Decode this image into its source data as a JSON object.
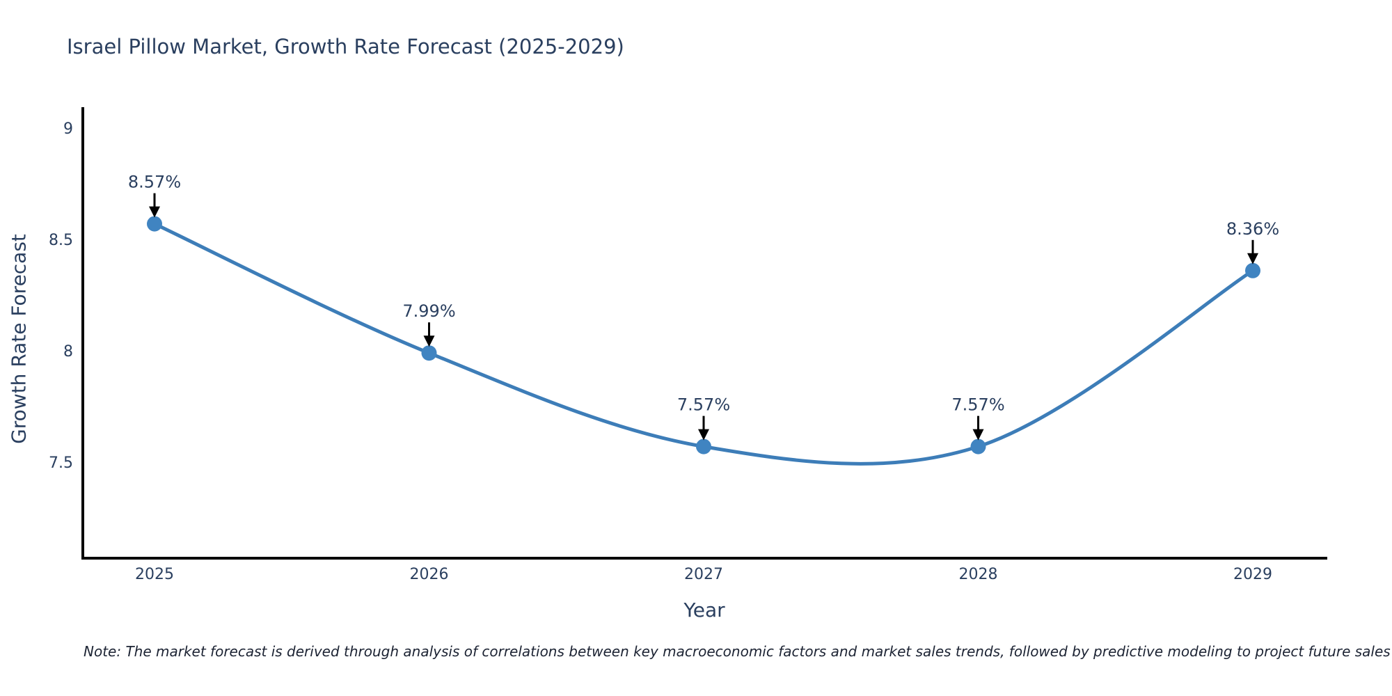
{
  "note": "Note: The market forecast is derived through analysis of correlations between key macroeconomic factors and market sales trends, followed by predictive modeling to project future sales",
  "chart_data": {
    "type": "line",
    "title": "Israel Pillow Market, Growth Rate Forecast (2025-2029)",
    "xlabel": "Year",
    "ylabel": "Growth Rate Forecast",
    "categories": [
      "2025",
      "2026",
      "2027",
      "2028",
      "2029"
    ],
    "series": [
      {
        "name": "Growth Rate Forecast",
        "values": [
          8.57,
          7.99,
          7.57,
          7.57,
          8.36
        ]
      }
    ],
    "point_labels": [
      "8.57%",
      "7.99%",
      "7.57%",
      "7.57%",
      "8.36%"
    ],
    "line_shape": "spline",
    "markers": true,
    "annotations_arrows": true,
    "grid": false,
    "legend": "none",
    "yticks": [
      7.5,
      8,
      8.5,
      9
    ],
    "ytick_labels": [
      "7.5",
      "8",
      "8.5",
      "9"
    ],
    "ylim": [
      7.1,
      9.09
    ],
    "colors": {
      "line": "#3d7db8",
      "marker": "#4084c1",
      "axis": "#000000",
      "text": "#2a3f5f",
      "arrow": "#000000",
      "note_text": "#1c2333",
      "background": "#ffffff"
    }
  }
}
